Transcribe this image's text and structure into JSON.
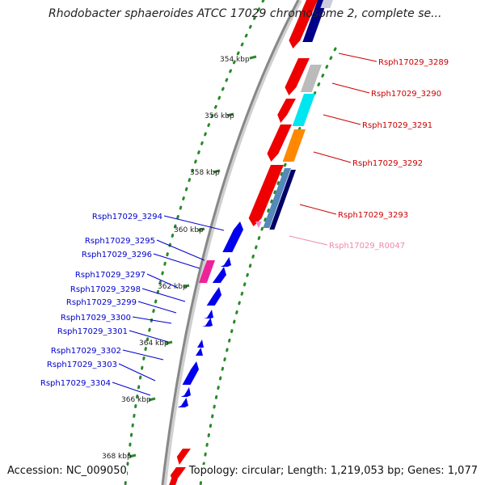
{
  "title": "Rhodobacter sphaeroides ATCC 17029 chromosome 2, complete se...",
  "footer": {
    "accession": "Accession: NC_009050",
    "stats": "Topology: circular; Length: 1,219,053 bp; Genes: 1,077"
  },
  "colors": {
    "backbone": "#888888",
    "tick": "#2a8a2a",
    "forward_label": "#cc0000",
    "reverse_label": "#0000cc",
    "rna_label": "#ee88aa"
  },
  "ticks": [
    {
      "label": "354 kbp"
    },
    {
      "label": "356 kbp"
    },
    {
      "label": "358 kbp"
    },
    {
      "label": "360 kbp"
    },
    {
      "label": "362 kbp"
    },
    {
      "label": "364 kbp"
    },
    {
      "label": "366 kbp"
    },
    {
      "label": "368 kbp"
    }
  ],
  "right_labels": [
    {
      "text": "Rsph17029_3289",
      "color": "#cc0000"
    },
    {
      "text": "Rsph17029_3290",
      "color": "#cc0000"
    },
    {
      "text": "Rsph17029_3291",
      "color": "#cc0000"
    },
    {
      "text": "Rsph17029_3292",
      "color": "#cc0000"
    },
    {
      "text": "Rsph17029_3293",
      "color": "#cc0000"
    },
    {
      "text": "Rsph17029_R0047",
      "color": "#ee88aa"
    }
  ],
  "left_labels": [
    {
      "text": "Rsph17029_3294"
    },
    {
      "text": "Rsph17029_3295"
    },
    {
      "text": "Rsph17029_3296"
    },
    {
      "text": "Rsph17029_3297"
    },
    {
      "text": "Rsph17029_3298"
    },
    {
      "text": "Rsph17029_3299"
    },
    {
      "text": "Rsph17029_3300"
    },
    {
      "text": "Rsph17029_3301"
    },
    {
      "text": "Rsph17029_3302"
    },
    {
      "text": "Rsph17029_3303"
    },
    {
      "text": "Rsph17029_3304"
    }
  ]
}
